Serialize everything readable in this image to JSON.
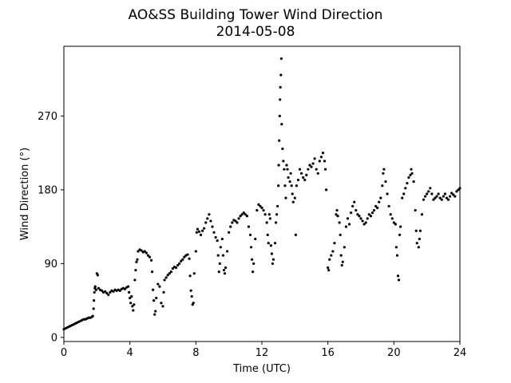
{
  "chart_data": {
    "type": "scatter",
    "title": "AO&SS Building Tower Wind Direction",
    "subtitle": "2014-05-08",
    "xlabel": "Time (UTC)",
    "ylabel": "Wind Direction (°)",
    "xlim": [
      0,
      24
    ],
    "ylim": [
      -5,
      355
    ],
    "xticks": [
      0,
      4,
      8,
      12,
      16,
      20,
      24
    ],
    "yticks": [
      0,
      90,
      180,
      270
    ],
    "grid": false,
    "marker_color": "#000000",
    "points": [
      [
        0.0,
        10
      ],
      [
        0.1,
        11
      ],
      [
        0.2,
        12
      ],
      [
        0.3,
        13
      ],
      [
        0.4,
        14
      ],
      [
        0.5,
        15
      ],
      [
        0.6,
        16
      ],
      [
        0.7,
        17
      ],
      [
        0.8,
        18
      ],
      [
        0.9,
        19
      ],
      [
        1.0,
        20
      ],
      [
        1.1,
        21
      ],
      [
        1.2,
        22
      ],
      [
        1.3,
        22
      ],
      [
        1.4,
        23
      ],
      [
        1.5,
        24
      ],
      [
        1.6,
        24
      ],
      [
        1.7,
        25
      ],
      [
        1.75,
        26
      ],
      [
        1.8,
        35
      ],
      [
        1.82,
        45
      ],
      [
        1.85,
        55
      ],
      [
        1.88,
        60
      ],
      [
        1.9,
        62
      ],
      [
        1.95,
        58
      ],
      [
        2.0,
        78
      ],
      [
        2.05,
        76
      ],
      [
        2.1,
        60
      ],
      [
        2.2,
        58
      ],
      [
        2.3,
        57
      ],
      [
        2.4,
        55
      ],
      [
        2.5,
        56
      ],
      [
        2.6,
        54
      ],
      [
        2.7,
        52
      ],
      [
        2.8,
        55
      ],
      [
        2.9,
        57
      ],
      [
        3.0,
        56
      ],
      [
        3.1,
        58
      ],
      [
        3.2,
        57
      ],
      [
        3.3,
        58
      ],
      [
        3.4,
        57
      ],
      [
        3.5,
        59
      ],
      [
        3.6,
        60
      ],
      [
        3.7,
        59
      ],
      [
        3.8,
        61
      ],
      [
        3.9,
        62
      ],
      [
        3.95,
        55
      ],
      [
        4.0,
        48
      ],
      [
        4.05,
        42
      ],
      [
        4.1,
        50
      ],
      [
        4.15,
        38
      ],
      [
        4.2,
        33
      ],
      [
        4.25,
        40
      ],
      [
        4.3,
        70
      ],
      [
        4.35,
        82
      ],
      [
        4.4,
        92
      ],
      [
        4.45,
        95
      ],
      [
        4.5,
        105
      ],
      [
        4.6,
        107
      ],
      [
        4.7,
        106
      ],
      [
        4.8,
        104
      ],
      [
        4.9,
        105
      ],
      [
        5.0,
        103
      ],
      [
        5.1,
        100
      ],
      [
        5.2,
        98
      ],
      [
        5.3,
        94
      ],
      [
        5.35,
        80
      ],
      [
        5.4,
        58
      ],
      [
        5.45,
        45
      ],
      [
        5.5,
        28
      ],
      [
        5.55,
        32
      ],
      [
        5.6,
        48
      ],
      [
        5.7,
        65
      ],
      [
        5.8,
        62
      ],
      [
        5.9,
        42
      ],
      [
        6.0,
        38
      ],
      [
        6.05,
        55
      ],
      [
        6.1,
        70
      ],
      [
        6.2,
        73
      ],
      [
        6.3,
        76
      ],
      [
        6.4,
        78
      ],
      [
        6.5,
        80
      ],
      [
        6.6,
        84
      ],
      [
        6.7,
        86
      ],
      [
        6.8,
        85
      ],
      [
        6.9,
        88
      ],
      [
        7.0,
        90
      ],
      [
        7.1,
        93
      ],
      [
        7.2,
        95
      ],
      [
        7.3,
        98
      ],
      [
        7.4,
        100
      ],
      [
        7.5,
        101
      ],
      [
        7.6,
        96
      ],
      [
        7.65,
        75
      ],
      [
        7.7,
        57
      ],
      [
        7.75,
        50
      ],
      [
        7.8,
        40
      ],
      [
        7.85,
        42
      ],
      [
        7.9,
        78
      ],
      [
        8.0,
        105
      ],
      [
        8.05,
        128
      ],
      [
        8.1,
        132
      ],
      [
        8.2,
        129
      ],
      [
        8.3,
        125
      ],
      [
        8.4,
        130
      ],
      [
        8.5,
        133
      ],
      [
        8.6,
        140
      ],
      [
        8.7,
        145
      ],
      [
        8.8,
        150
      ],
      [
        8.9,
        142
      ],
      [
        9.0,
        135
      ],
      [
        9.1,
        128
      ],
      [
        9.2,
        122
      ],
      [
        9.3,
        118
      ],
      [
        9.35,
        100
      ],
      [
        9.4,
        80
      ],
      [
        9.45,
        90
      ],
      [
        9.5,
        110
      ],
      [
        9.6,
        120
      ],
      [
        9.65,
        100
      ],
      [
        9.7,
        82
      ],
      [
        9.75,
        78
      ],
      [
        9.8,
        85
      ],
      [
        9.9,
        105
      ],
      [
        10.0,
        128
      ],
      [
        10.1,
        135
      ],
      [
        10.2,
        140
      ],
      [
        10.3,
        143
      ],
      [
        10.4,
        142
      ],
      [
        10.5,
        140
      ],
      [
        10.6,
        145
      ],
      [
        10.7,
        148
      ],
      [
        10.8,
        150
      ],
      [
        10.9,
        152
      ],
      [
        11.0,
        150
      ],
      [
        11.1,
        148
      ],
      [
        11.2,
        135
      ],
      [
        11.3,
        125
      ],
      [
        11.35,
        110
      ],
      [
        11.4,
        95
      ],
      [
        11.45,
        80
      ],
      [
        11.5,
        90
      ],
      [
        11.6,
        120
      ],
      [
        11.7,
        155
      ],
      [
        11.8,
        162
      ],
      [
        11.9,
        160
      ],
      [
        12.0,
        158
      ],
      [
        12.1,
        155
      ],
      [
        12.2,
        150
      ],
      [
        12.3,
        140
      ],
      [
        12.35,
        125
      ],
      [
        12.4,
        115
      ],
      [
        12.45,
        150
      ],
      [
        12.5,
        145
      ],
      [
        12.55,
        112
      ],
      [
        12.6,
        102
      ],
      [
        12.65,
        90
      ],
      [
        12.7,
        95
      ],
      [
        12.8,
        115
      ],
      [
        12.85,
        140
      ],
      [
        12.9,
        150
      ],
      [
        12.95,
        160
      ],
      [
        13.0,
        185
      ],
      [
        13.02,
        210
      ],
      [
        13.05,
        240
      ],
      [
        13.08,
        270
      ],
      [
        13.1,
        290
      ],
      [
        13.12,
        305
      ],
      [
        13.15,
        320
      ],
      [
        13.18,
        340
      ],
      [
        13.2,
        260
      ],
      [
        13.25,
        230
      ],
      [
        13.3,
        215
      ],
      [
        13.35,
        205
      ],
      [
        13.4,
        185
      ],
      [
        13.45,
        170
      ],
      [
        13.5,
        210
      ],
      [
        13.55,
        205
      ],
      [
        13.6,
        195
      ],
      [
        13.7,
        190
      ],
      [
        13.75,
        200
      ],
      [
        13.8,
        185
      ],
      [
        13.85,
        175
      ],
      [
        13.9,
        165
      ],
      [
        14.0,
        170
      ],
      [
        14.05,
        125
      ],
      [
        14.1,
        185
      ],
      [
        14.2,
        192
      ],
      [
        14.3,
        205
      ],
      [
        14.4,
        200
      ],
      [
        14.5,
        195
      ],
      [
        14.6,
        192
      ],
      [
        14.7,
        198
      ],
      [
        14.8,
        205
      ],
      [
        14.9,
        210
      ],
      [
        15.0,
        208
      ],
      [
        15.1,
        212
      ],
      [
        15.2,
        218
      ],
      [
        15.3,
        205
      ],
      [
        15.4,
        200
      ],
      [
        15.5,
        215
      ],
      [
        15.6,
        220
      ],
      [
        15.7,
        225
      ],
      [
        15.8,
        215
      ],
      [
        15.85,
        205
      ],
      [
        15.9,
        180
      ],
      [
        16.0,
        85
      ],
      [
        16.05,
        82
      ],
      [
        16.1,
        95
      ],
      [
        16.2,
        100
      ],
      [
        16.3,
        105
      ],
      [
        16.4,
        115
      ],
      [
        16.5,
        150
      ],
      [
        16.55,
        155
      ],
      [
        16.6,
        148
      ],
      [
        16.7,
        140
      ],
      [
        16.75,
        125
      ],
      [
        16.8,
        100
      ],
      [
        16.85,
        88
      ],
      [
        16.9,
        92
      ],
      [
        17.0,
        110
      ],
      [
        17.1,
        135
      ],
      [
        17.2,
        145
      ],
      [
        17.3,
        138
      ],
      [
        17.4,
        152
      ],
      [
        17.5,
        160
      ],
      [
        17.6,
        165
      ],
      [
        17.7,
        155
      ],
      [
        17.8,
        150
      ],
      [
        17.9,
        148
      ],
      [
        18.0,
        145
      ],
      [
        18.1,
        142
      ],
      [
        18.2,
        138
      ],
      [
        18.3,
        140
      ],
      [
        18.4,
        145
      ],
      [
        18.5,
        150
      ],
      [
        18.6,
        148
      ],
      [
        18.7,
        152
      ],
      [
        18.8,
        155
      ],
      [
        18.9,
        160
      ],
      [
        19.0,
        158
      ],
      [
        19.1,
        165
      ],
      [
        19.2,
        170
      ],
      [
        19.3,
        185
      ],
      [
        19.35,
        200
      ],
      [
        19.4,
        205
      ],
      [
        19.5,
        190
      ],
      [
        19.6,
        175
      ],
      [
        19.7,
        160
      ],
      [
        19.8,
        150
      ],
      [
        19.9,
        145
      ],
      [
        20.0,
        140
      ],
      [
        20.1,
        138
      ],
      [
        20.15,
        110
      ],
      [
        20.2,
        100
      ],
      [
        20.25,
        75
      ],
      [
        20.3,
        70
      ],
      [
        20.35,
        125
      ],
      [
        20.4,
        135
      ],
      [
        20.5,
        170
      ],
      [
        20.6,
        175
      ],
      [
        20.7,
        182
      ],
      [
        20.8,
        188
      ],
      [
        20.9,
        195
      ],
      [
        21.0,
        198
      ],
      [
        21.05,
        205
      ],
      [
        21.1,
        200
      ],
      [
        21.2,
        190
      ],
      [
        21.3,
        155
      ],
      [
        21.35,
        130
      ],
      [
        21.4,
        115
      ],
      [
        21.5,
        110
      ],
      [
        21.55,
        120
      ],
      [
        21.6,
        130
      ],
      [
        21.7,
        150
      ],
      [
        21.8,
        168
      ],
      [
        21.9,
        172
      ],
      [
        22.0,
        175
      ],
      [
        22.1,
        178
      ],
      [
        22.2,
        182
      ],
      [
        22.3,
        175
      ],
      [
        22.4,
        168
      ],
      [
        22.5,
        170
      ],
      [
        22.6,
        172
      ],
      [
        22.7,
        175
      ],
      [
        22.8,
        170
      ],
      [
        22.9,
        168
      ],
      [
        23.0,
        172
      ],
      [
        23.1,
        175
      ],
      [
        23.2,
        170
      ],
      [
        23.3,
        168
      ],
      [
        23.4,
        172
      ],
      [
        23.5,
        176
      ],
      [
        23.6,
        174
      ],
      [
        23.7,
        172
      ],
      [
        23.8,
        178
      ],
      [
        23.9,
        180
      ],
      [
        24.0,
        182
      ]
    ]
  }
}
